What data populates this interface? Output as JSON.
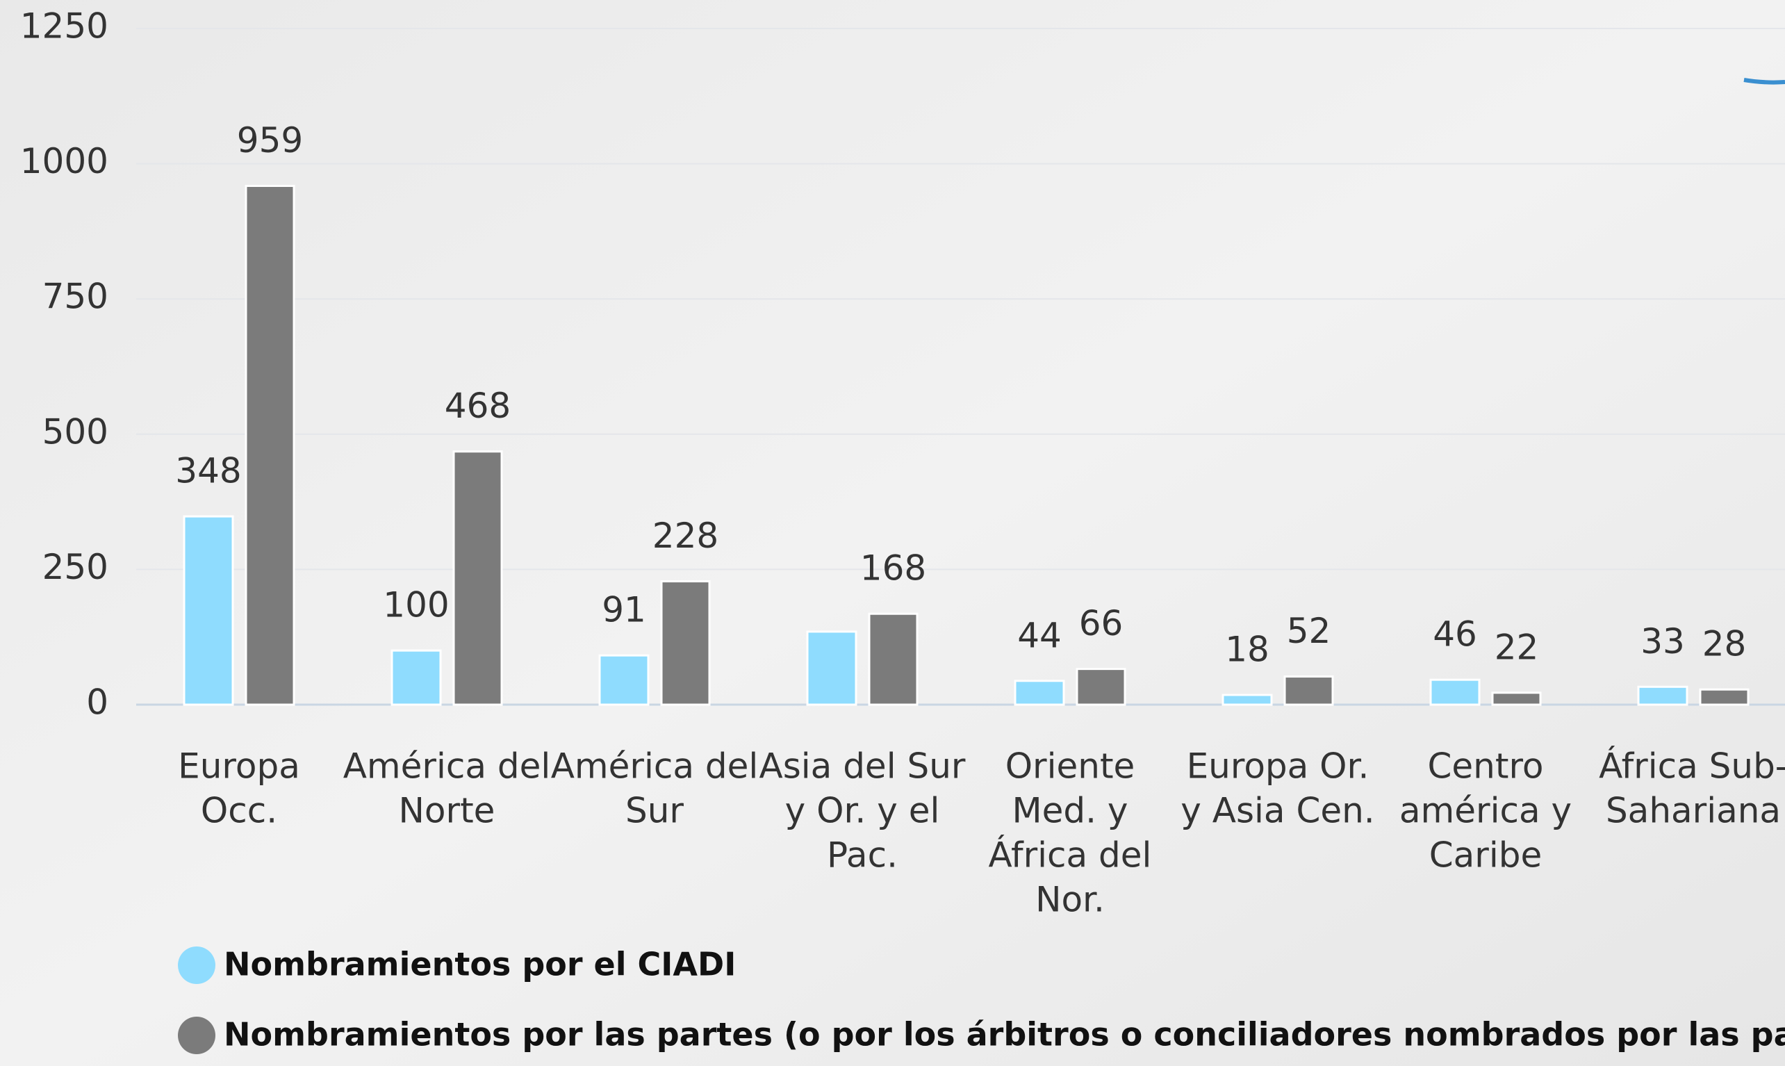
{
  "chart_data": {
    "type": "bar",
    "categories": [
      [
        "Europa",
        "Occ."
      ],
      [
        "América del",
        "Norte"
      ],
      [
        "América del",
        "Sur"
      ],
      [
        "Asia del Sur",
        "y Or. y el",
        "Pac."
      ],
      [
        "Oriente",
        "Med. y",
        "África del",
        "Nor."
      ],
      [
        "Europa Or.",
        "y Asia Cen."
      ],
      [
        "Centro",
        "américa y",
        "Caribe"
      ],
      [
        "África Sub-",
        "Sahariana"
      ]
    ],
    "series": [
      {
        "name": "Nombramientos por el CIADI",
        "color": "#8fdcfe",
        "values": [
          348,
          100,
          91,
          135,
          44,
          18,
          46,
          33
        ],
        "value_labels": [
          "348",
          "100",
          "91",
          null,
          "44",
          "18",
          "46",
          "33"
        ]
      },
      {
        "name": "Nombramientos por las partes (o por los árbitros o conciliadores nombrados por las partes)",
        "color": "#7b7b7b",
        "values": [
          959,
          468,
          228,
          168,
          66,
          52,
          22,
          28
        ]
      }
    ],
    "ylim": [
      0,
      1250
    ],
    "yticks": [
      0,
      250,
      500,
      750,
      1000,
      1250
    ],
    "grid": true,
    "legend": "bottom"
  }
}
